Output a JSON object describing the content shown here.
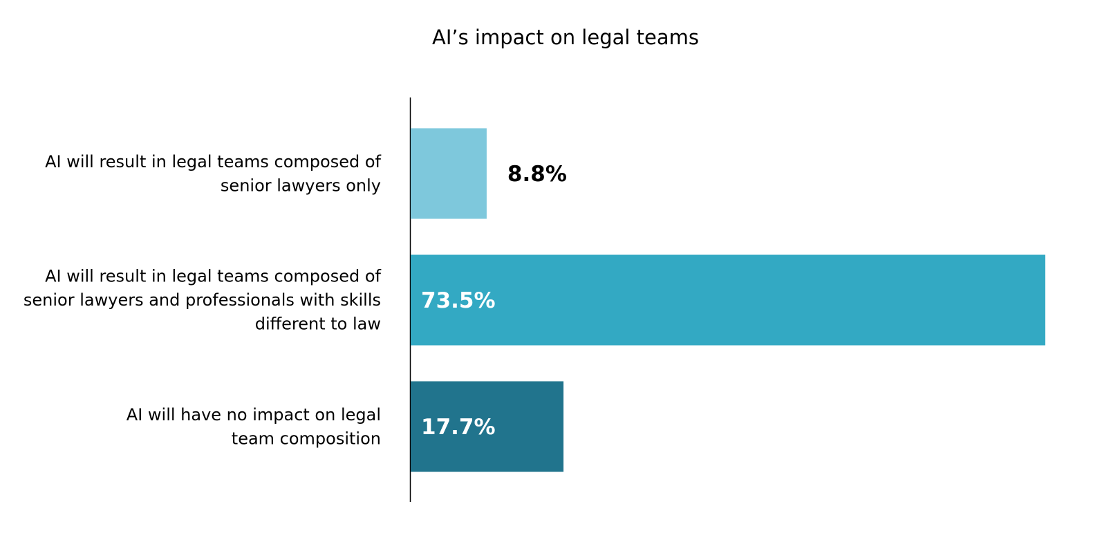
{
  "chart_data": {
    "type": "bar",
    "orientation": "horizontal",
    "title": "AI’s impact on legal teams",
    "xlabel": "",
    "ylabel": "",
    "xlim": [
      0,
      73.5
    ],
    "grid": false,
    "legend": "none",
    "categories": [
      [
        "AI will result in legal teams composed of",
        "senior lawyers only"
      ],
      [
        "AI will result in legal teams composed of",
        "senior lawyers and professionals with skills",
        "different to law"
      ],
      [
        "AI will have no impact on legal",
        "team composition"
      ]
    ],
    "values": [
      8.8,
      73.5,
      17.7
    ],
    "value_labels": [
      "8.8%",
      "73.5%",
      "17.7%"
    ],
    "colors": [
      "#7ec8dc",
      "#33a9c3",
      "#21748d"
    ],
    "value_label_colors": [
      "#000000",
      "#ffffff",
      "#ffffff"
    ]
  }
}
